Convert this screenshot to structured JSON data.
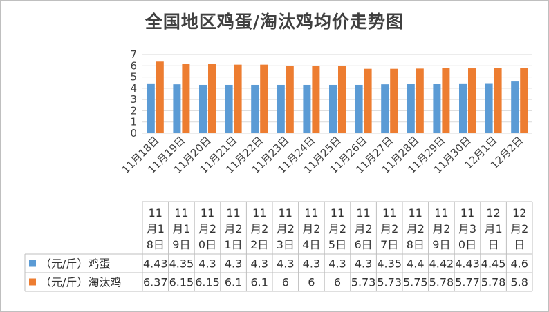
{
  "chart_data": {
    "type": "bar",
    "title": "全国地区鸡蛋/淘汰鸡均价走势图",
    "categories": [
      "11月18日",
      "11月19日",
      "11月20日",
      "11月21日",
      "11月22日",
      "11月23日",
      "11月24日",
      "11月25日",
      "11月26日",
      "11月27日",
      "11月28日",
      "11月29日",
      "11月30日",
      "12月1日",
      "12月2日"
    ],
    "series": [
      {
        "name": "（元/斤）鸡蛋",
        "color": "#5b9bd5",
        "values": [
          4.43,
          4.35,
          4.3,
          4.3,
          4.3,
          4.3,
          4.3,
          4.3,
          4.3,
          4.35,
          4.4,
          4.42,
          4.43,
          4.45,
          4.6
        ]
      },
      {
        "name": "（元/斤）淘汰鸡",
        "color": "#ed7d31",
        "values": [
          6.37,
          6.15,
          6.15,
          6.1,
          6.1,
          6,
          6,
          6,
          5.73,
          5.73,
          5.75,
          5.78,
          5.77,
          5.78,
          5.8
        ]
      }
    ],
    "yticks": [
      0,
      1,
      2,
      3,
      4,
      5,
      6,
      7
    ],
    "ylim": [
      0,
      7
    ],
    "grid": true,
    "legend": "data-table",
    "table_headers": [
      [
        "11",
        "月1",
        "8日"
      ],
      [
        "11",
        "月1",
        "9日"
      ],
      [
        "11",
        "月2",
        "0日"
      ],
      [
        "11",
        "月2",
        "1日"
      ],
      [
        "11",
        "月2",
        "2日"
      ],
      [
        "11",
        "月2",
        "3日"
      ],
      [
        "11",
        "月2",
        "4日"
      ],
      [
        "11",
        "月2",
        "5日"
      ],
      [
        "11",
        "月2",
        "6日"
      ],
      [
        "11",
        "月2",
        "7日"
      ],
      [
        "11",
        "月2",
        "8日"
      ],
      [
        "11",
        "月2",
        "9日"
      ],
      [
        "11",
        "月3",
        "0日"
      ],
      [
        "12",
        "月1",
        "日"
      ],
      [
        "12",
        "月2",
        "日"
      ]
    ],
    "table_values": [
      [
        "4.43",
        "4.35",
        "4.3",
        "4.3",
        "4.3",
        "4.3",
        "4.3",
        "4.3",
        "4.3",
        "4.35",
        "4.4",
        "4.42",
        "4.43",
        "4.45",
        "4.6"
      ],
      [
        "6.37",
        "6.15",
        "6.15",
        "6.1",
        "6.1",
        "6",
        "6",
        "6",
        "5.73",
        "5.73",
        "5.75",
        "5.78",
        "5.77",
        "5.78",
        "5.8"
      ]
    ]
  }
}
